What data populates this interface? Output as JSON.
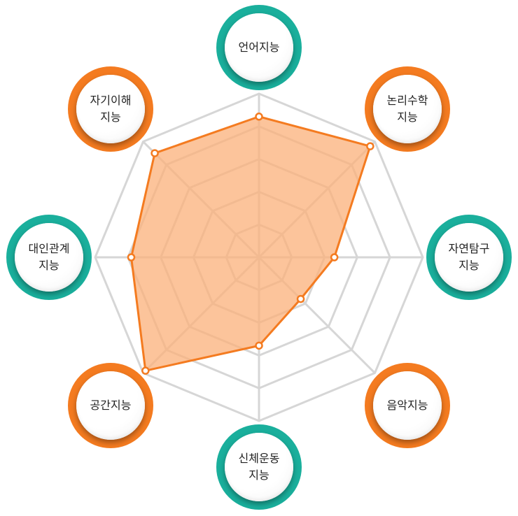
{
  "chart_data": {
    "type": "radar",
    "title": "",
    "axes": [
      {
        "label": "언어지능",
        "theme": "teal"
      },
      {
        "label": "논리수학\n지능",
        "theme": "orange"
      },
      {
        "label": "자연탐구\n지능",
        "theme": "teal"
      },
      {
        "label": "음악지능",
        "theme": "orange"
      },
      {
        "label": "신체운동\n지능",
        "theme": "teal"
      },
      {
        "label": "공간지능",
        "theme": "orange"
      },
      {
        "label": "대인관계\n지능",
        "theme": "teal"
      },
      {
        "label": "자기이해\n지능",
        "theme": "orange"
      }
    ],
    "levels": 5,
    "max": 5,
    "series": [
      {
        "values": [
          4.3,
          4.8,
          2.3,
          1.8,
          2.7,
          4.9,
          3.9,
          4.5
        ]
      }
    ],
    "grid": true,
    "legend": "none"
  },
  "colors": {
    "teal": "#1aaf9c",
    "orange": "#f47b20",
    "series_line": "#f47b20",
    "series_fill": "#fbb07a",
    "grid": "#d6d6d6"
  }
}
